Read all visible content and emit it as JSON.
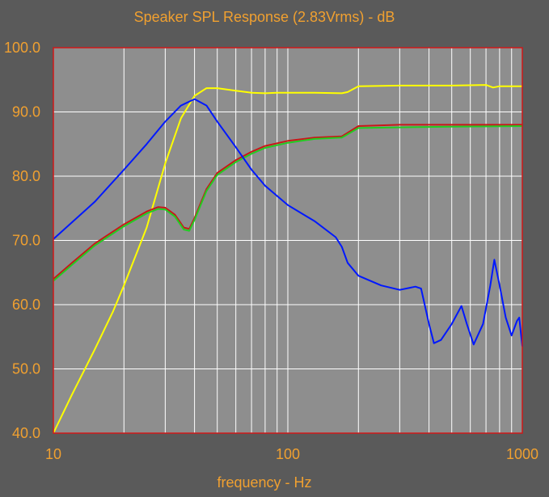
{
  "chart_data": {
    "type": "line",
    "title": "Speaker SPL Response (2.83Vrms) - dB",
    "xlabel": "frequency - Hz",
    "ylabel": "",
    "x_scale": "log",
    "xlim": [
      10,
      1000
    ],
    "ylim": [
      40,
      100
    ],
    "x_ticks": [
      "10",
      "100",
      "1000"
    ],
    "y_ticks": [
      "40.0",
      "50.0",
      "60.0",
      "70.0",
      "80.0",
      "90.0",
      "100.0"
    ],
    "grid": true,
    "colors": {
      "background": "#5a5a5a",
      "plot_bg": "#8e8e8e",
      "border": "#d01818",
      "text": "#f0a030",
      "grid": "#ffffff"
    },
    "series": [
      {
        "color": "#ffff00",
        "points": [
          [
            10,
            40
          ],
          [
            12,
            46
          ],
          [
            15,
            53
          ],
          [
            18,
            59
          ],
          [
            20,
            63
          ],
          [
            25,
            72
          ],
          [
            30,
            82
          ],
          [
            35,
            89
          ],
          [
            40,
            92.5
          ],
          [
            45,
            93.7
          ],
          [
            50,
            93.7
          ],
          [
            60,
            93.3
          ],
          [
            70,
            93
          ],
          [
            80,
            92.9
          ],
          [
            90,
            93
          ],
          [
            100,
            93
          ],
          [
            130,
            93
          ],
          [
            170,
            92.9
          ],
          [
            180,
            93.1
          ],
          [
            200,
            94
          ],
          [
            300,
            94.1
          ],
          [
            500,
            94.1
          ],
          [
            700,
            94.2
          ],
          [
            750,
            93.8
          ],
          [
            800,
            94
          ],
          [
            1000,
            94
          ]
        ]
      },
      {
        "color": "#c81818",
        "points": [
          [
            10,
            64
          ],
          [
            12,
            66.5
          ],
          [
            15,
            69.5
          ],
          [
            20,
            72.5
          ],
          [
            25,
            74.5
          ],
          [
            28,
            75.2
          ],
          [
            30,
            75.1
          ],
          [
            33,
            74
          ],
          [
            36,
            72
          ],
          [
            38,
            71.8
          ],
          [
            40,
            73.5
          ],
          [
            45,
            78
          ],
          [
            50,
            80.5
          ],
          [
            60,
            82.5
          ],
          [
            70,
            83.8
          ],
          [
            80,
            84.7
          ],
          [
            100,
            85.5
          ],
          [
            130,
            86
          ],
          [
            170,
            86.2
          ],
          [
            200,
            87.8
          ],
          [
            300,
            88
          ],
          [
            500,
            88
          ],
          [
            1000,
            88
          ]
        ]
      },
      {
        "color": "#22cc22",
        "points": [
          [
            10,
            63.7
          ],
          [
            12,
            66.2
          ],
          [
            15,
            69.2
          ],
          [
            20,
            72.2
          ],
          [
            25,
            74.2
          ],
          [
            28,
            74.9
          ],
          [
            30,
            74.8
          ],
          [
            33,
            73.7
          ],
          [
            36,
            71.7
          ],
          [
            38,
            71.5
          ],
          [
            40,
            73.2
          ],
          [
            45,
            77.7
          ],
          [
            50,
            80.2
          ],
          [
            60,
            82.2
          ],
          [
            70,
            83.5
          ],
          [
            80,
            84.4
          ],
          [
            100,
            85.2
          ],
          [
            130,
            85.8
          ],
          [
            170,
            86
          ],
          [
            200,
            87.5
          ],
          [
            300,
            87.6
          ],
          [
            500,
            87.7
          ],
          [
            1000,
            87.8
          ]
        ]
      },
      {
        "color": "#0018ff",
        "points": [
          [
            10,
            70.2
          ],
          [
            15,
            76
          ],
          [
            20,
            81
          ],
          [
            25,
            85
          ],
          [
            30,
            88.5
          ],
          [
            35,
            91
          ],
          [
            40,
            92
          ],
          [
            45,
            91
          ],
          [
            50,
            88.5
          ],
          [
            60,
            84.5
          ],
          [
            70,
            81
          ],
          [
            80,
            78.5
          ],
          [
            100,
            75.5
          ],
          [
            130,
            73
          ],
          [
            160,
            70.5
          ],
          [
            170,
            69
          ],
          [
            180,
            66.5
          ],
          [
            200,
            64.5
          ],
          [
            250,
            63
          ],
          [
            300,
            62.3
          ],
          [
            350,
            62.8
          ],
          [
            370,
            62.5
          ],
          [
            400,
            57
          ],
          [
            420,
            54
          ],
          [
            450,
            54.5
          ],
          [
            500,
            57
          ],
          [
            550,
            59.8
          ],
          [
            580,
            57
          ],
          [
            620,
            53.8
          ],
          [
            680,
            57
          ],
          [
            730,
            63
          ],
          [
            760,
            67
          ],
          [
            800,
            63
          ],
          [
            850,
            58
          ],
          [
            900,
            55.2
          ],
          [
            950,
            57.5
          ],
          [
            970,
            58
          ],
          [
            990,
            55
          ],
          [
            1000,
            53.5
          ]
        ]
      }
    ]
  }
}
